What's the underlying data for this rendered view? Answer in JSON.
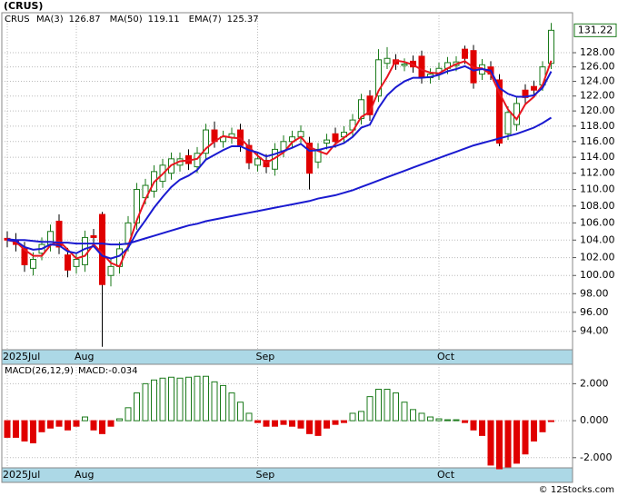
{
  "chart_data": [
    {
      "type": "candlestick",
      "title": "(CRUS)",
      "symbol": "CRUS",
      "open": [
        104.2,
        104,
        103,
        100.8,
        102.5,
        103.5,
        106.2,
        102.3,
        101,
        101.2,
        104.5,
        107,
        100,
        101,
        103.5,
        106,
        109,
        109.8,
        111,
        112,
        113,
        114.2,
        112.8,
        114.5,
        117.5,
        116,
        116.5,
        117.5,
        115.5,
        113,
        113.6,
        112.5,
        114.8,
        116,
        116.6,
        115.8,
        113.4,
        115.8,
        117,
        116.6,
        117.5,
        119,
        122,
        122,
        126.5,
        127,
        126.2,
        126.8,
        127.5,
        124.5,
        125,
        125.8,
        126.2,
        128.5,
        128.3,
        125,
        126,
        124.2,
        117,
        118.2,
        122.8,
        123.3,
        123.5,
        126.5
      ],
      "high": [
        105,
        104.8,
        103.8,
        102.6,
        104.3,
        105.8,
        107,
        103.1,
        102.6,
        105.1,
        105.3,
        107.3,
        101.8,
        103.8,
        106.8,
        110.8,
        111.3,
        113,
        113.8,
        114.6,
        114.6,
        115,
        115.3,
        118.3,
        118.6,
        117.4,
        117.8,
        118.3,
        116.3,
        114.6,
        114.4,
        115.8,
        116.8,
        117.4,
        118.1,
        116.6,
        115.8,
        117,
        117.8,
        118,
        119.6,
        122.3,
        122.8,
        128.5,
        128.8,
        127.8,
        127.2,
        127.6,
        128.3,
        125.8,
        126.6,
        127.4,
        127.5,
        129,
        129.1,
        127.1,
        126.8,
        125,
        120.6,
        121.8,
        123.6,
        124.1,
        126.8,
        132.3
      ],
      "low": [
        103.2,
        102.7,
        100.4,
        100,
        101.7,
        102.7,
        102.4,
        99.8,
        100.2,
        100.4,
        103.5,
        92.4,
        98.8,
        100.2,
        102.7,
        105.2,
        108.2,
        109,
        110.2,
        111.2,
        112.2,
        112.4,
        112,
        113.7,
        115.2,
        115.2,
        115.7,
        114.7,
        112.5,
        112.2,
        112,
        111.7,
        114,
        115.2,
        115.8,
        110,
        112.6,
        115,
        115.2,
        115.8,
        116.7,
        118.2,
        118.7,
        121.2,
        125.7,
        125.6,
        125.4,
        125.2,
        123.7,
        123.7,
        124.2,
        125,
        125.4,
        126.4,
        123,
        124.2,
        124.2,
        115.4,
        116.2,
        117.4,
        121,
        122,
        122.7,
        125.7
      ],
      "close": [
        104,
        103.5,
        101.2,
        101.8,
        103.5,
        105,
        103.2,
        100.6,
        101.8,
        104.3,
        104.3,
        99,
        101,
        103,
        106,
        110,
        110.5,
        112.2,
        113,
        113.8,
        113.8,
        113.2,
        114.5,
        117.5,
        116,
        116.6,
        117,
        115.5,
        113.3,
        113.8,
        112.8,
        115,
        116,
        116.6,
        117.3,
        112,
        115,
        116.2,
        116,
        117.2,
        118.8,
        121.5,
        119.5,
        127,
        127.2,
        126.4,
        126.4,
        126,
        124.5,
        125,
        125.8,
        126.6,
        126.7,
        127.2,
        123.8,
        126.3,
        125,
        115.8,
        119.8,
        121,
        121.8,
        122.8,
        126,
        131.22
      ],
      "series": [
        {
          "name": "MA(3)",
          "color": "#e8141e",
          "values": [
            104,
            103.8,
            102.9,
            102.2,
            102.2,
            103.4,
            103.9,
            102.9,
            101.9,
            102.2,
            103.5,
            102.5,
            101.4,
            101,
            103.3,
            106.3,
            108.8,
            110.9,
            111.9,
            113,
            113.5,
            113.6,
            113.8,
            115.1,
            116,
            116.7,
            116.5,
            116.4,
            115.3,
            114.2,
            113.3,
            113.9,
            114.6,
            115.9,
            116.6,
            115.3,
            114.8,
            114.4,
            115.7,
            116.5,
            117.3,
            119.2,
            119.9,
            122.7,
            124.6,
            126.9,
            126.7,
            126.3,
            125.6,
            125.2,
            125.1,
            125.8,
            126.4,
            126.8,
            125.9,
            125.8,
            125,
            122.4,
            120.2,
            118.9,
            120.9,
            121.9,
            123.5,
            126.87
          ]
        },
        {
          "name": "MA(50)",
          "color": "#1a1ad0",
          "values": [
            104.1,
            104,
            104,
            103.9,
            103.8,
            103.8,
            103.7,
            103.7,
            103.6,
            103.6,
            103.6,
            103.6,
            103.5,
            103.5,
            103.6,
            103.9,
            104.2,
            104.5,
            104.8,
            105.1,
            105.4,
            105.7,
            105.9,
            106.2,
            106.4,
            106.6,
            106.8,
            107,
            107.2,
            107.4,
            107.6,
            107.8,
            108,
            108.2,
            108.4,
            108.6,
            108.9,
            109.1,
            109.3,
            109.6,
            109.9,
            110.3,
            110.7,
            111.1,
            111.5,
            111.9,
            112.3,
            112.7,
            113.1,
            113.5,
            113.9,
            114.3,
            114.7,
            115.1,
            115.5,
            115.8,
            116.1,
            116.4,
            116.7,
            117,
            117.4,
            117.8,
            118.4,
            119.11
          ]
        },
        {
          "name": "EMA(7)",
          "color": "#1a1ad0",
          "values": [
            104,
            103.9,
            103.2,
            102.9,
            103,
            103.5,
            103.4,
            102.7,
            102.5,
            103,
            103.3,
            102.2,
            101.9,
            102.2,
            103.1,
            104.9,
            106.3,
            107.8,
            109.1,
            110.3,
            111.2,
            111.7,
            112.4,
            113.7,
            114.3,
            114.9,
            115.4,
            115.4,
            114.9,
            114.6,
            114.1,
            114.4,
            114.8,
            115.2,
            115.7,
            114.8,
            114.9,
            115.2,
            115.4,
            115.8,
            116.6,
            117.8,
            118.2,
            120.4,
            122.1,
            123.2,
            124,
            124.5,
            124.5,
            124.6,
            124.9,
            125.4,
            125.7,
            126.1,
            125.5,
            125.7,
            125.5,
            123.1,
            122.3,
            121.9,
            121.9,
            122.1,
            123.1,
            125.37
          ]
        }
      ],
      "up_color": "#1a7a1a",
      "down_color": "#e00000",
      "xticks": [
        {
          "value": 0,
          "label": "2025Jul"
        },
        {
          "value": 8,
          "label": "Aug"
        },
        {
          "value": 29,
          "label": "Sep"
        },
        {
          "value": 50,
          "label": "Oct"
        }
      ],
      "ylim": [
        92.1,
        133.8
      ],
      "log_scale": true,
      "grid": true,
      "yticks": [
        {
          "value": 94,
          "label": "94.00"
        },
        {
          "value": 96,
          "label": "96.00"
        },
        {
          "value": 98,
          "label": "98.00"
        },
        {
          "value": 100,
          "label": "100.00"
        },
        {
          "value": 102,
          "label": "102.00"
        },
        {
          "value": 104,
          "label": "104.00"
        },
        {
          "value": 106,
          "label": "106.00"
        },
        {
          "value": 108,
          "label": "108.00"
        },
        {
          "value": 110,
          "label": "110.00"
        },
        {
          "value": 112,
          "label": "112.00"
        },
        {
          "value": 114,
          "label": "114.00"
        },
        {
          "value": 116,
          "label": "116.00"
        },
        {
          "value": 118,
          "label": "118.00"
        },
        {
          "value": 120,
          "label": "120.00"
        },
        {
          "value": 122,
          "label": "122.00"
        },
        {
          "value": 124,
          "label": "124.00"
        },
        {
          "value": 126,
          "label": "126.00"
        },
        {
          "value": 128,
          "label": "128.00"
        }
      ]
    },
    {
      "type": "bar",
      "title": "MACD(26,12,9)",
      "annotation": "MACD:-0.034",
      "values": [
        -0.9,
        -0.9,
        -1.1,
        -1.2,
        -0.6,
        -0.4,
        -0.3,
        -0.5,
        -0.3,
        0.2,
        -0.5,
        -0.7,
        -0.3,
        0.1,
        0.7,
        1.5,
        2.0,
        2.2,
        2.3,
        2.35,
        2.3,
        2.35,
        2.4,
        2.4,
        2.1,
        1.9,
        1.5,
        1.0,
        0.4,
        -0.1,
        -0.3,
        -0.3,
        -0.2,
        -0.3,
        -0.4,
        -0.7,
        -0.8,
        -0.4,
        -0.2,
        -0.1,
        0.4,
        0.5,
        1.3,
        1.7,
        1.7,
        1.5,
        1.0,
        0.6,
        0.4,
        0.2,
        0.1,
        0.05,
        0.05,
        -0.1,
        -0.5,
        -0.8,
        -2.4,
        -2.6,
        -2.5,
        -2.3,
        -1.8,
        -1.1,
        -0.6,
        -0.034
      ],
      "up_color": "#1a7a1a",
      "down_color": "#e00000",
      "xticks": [
        {
          "value": 0,
          "label": "2025Jul"
        },
        {
          "value": 8,
          "label": "Aug"
        },
        {
          "value": 29,
          "label": "Sep"
        },
        {
          "value": 50,
          "label": "Oct"
        }
      ],
      "ylim": [
        -2.55,
        3.05
      ],
      "grid": true,
      "yticks": [
        {
          "value": -2,
          "label": "-2.000"
        },
        {
          "value": 0,
          "label": "0.000"
        },
        {
          "value": 2,
          "label": "2.000"
        }
      ]
    }
  ],
  "watermark": "© 12Stocks.com"
}
